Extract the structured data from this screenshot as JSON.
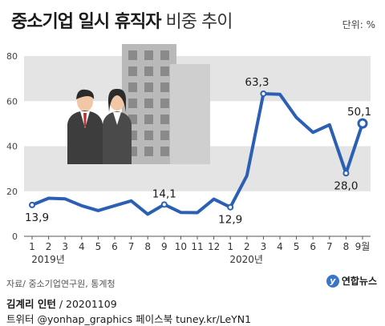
{
  "header": {
    "title": "중소기업 일시 휴직자",
    "subtitle": "비중 추이",
    "unit": "단위: %"
  },
  "chart_data": {
    "type": "line",
    "title": "중소기업 일시 휴직자 비중 추이",
    "ylim": [
      0,
      80
    ],
    "yticks": [
      0,
      20,
      40,
      60,
      80
    ],
    "x_labels": [
      "1",
      "2",
      "3",
      "4",
      "5",
      "6",
      "7",
      "8",
      "9",
      "10",
      "11",
      "12",
      "1",
      "2",
      "3",
      "4",
      "5",
      "6",
      "7",
      "8",
      "9월"
    ],
    "year_labels": [
      {
        "label": "2019년",
        "start_index": 0
      },
      {
        "label": "2020년",
        "start_index": 12
      }
    ],
    "series": [
      {
        "values": [
          13.9,
          16.9,
          16.6,
          13.6,
          11.4,
          13.6,
          15.7,
          9.8,
          14.1,
          10.6,
          10.5,
          16.5,
          12.9,
          26.9,
          63.3,
          63.0,
          52.7,
          46.1,
          49.5,
          28.0,
          50.1
        ]
      }
    ],
    "data_labels": [
      {
        "index": 0,
        "text": "13,9"
      },
      {
        "index": 8,
        "text": "14,1"
      },
      {
        "index": 12,
        "text": "12,9"
      },
      {
        "index": 14,
        "text": "63,3"
      },
      {
        "index": 19,
        "text": "28,0"
      },
      {
        "index": 20,
        "text": "50,1"
      }
    ],
    "grid": "alternating-bands",
    "line_color": "#2b5fb4",
    "band_color": "#e4e4e4"
  },
  "footer": {
    "source": "자료/ 중소기업연구원, 통계청",
    "logo_text": "연합뉴스",
    "logo_mark": "y",
    "credit_name": "김계리 인턴",
    "credit_date": " / 20201109",
    "social": "트위터 @yonhap_graphics  페이스북 tuney.kr/LeYN1"
  }
}
